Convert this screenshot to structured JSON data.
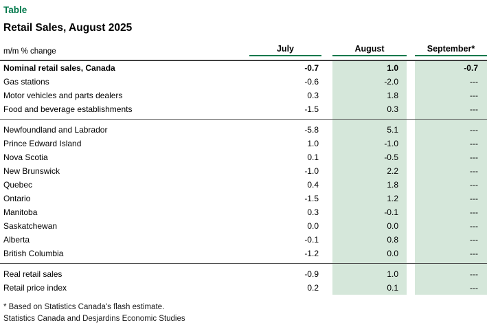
{
  "page": {
    "kicker": "Table",
    "title": "Retail Sales, August 2025"
  },
  "chart_data": {
    "type": "table",
    "title": "Retail Sales, August 2025",
    "unit_label": "m/m % change",
    "columns": [
      "July",
      "August",
      "September*"
    ],
    "shaded_columns": [
      "August",
      "September*"
    ],
    "sections": [
      {
        "rows": [
          {
            "label": "Nominal retail sales, Canada",
            "bold": true,
            "values": [
              "-0.7",
              "1.0",
              "-0.7"
            ]
          },
          {
            "label": "Gas stations",
            "bold": false,
            "values": [
              "-0.6",
              "-2.0",
              "---"
            ]
          },
          {
            "label": "Motor vehicles and parts dealers",
            "bold": false,
            "values": [
              "0.3",
              "1.8",
              "---"
            ]
          },
          {
            "label": "Food and beverage establishments",
            "bold": false,
            "values": [
              "-1.5",
              "0.3",
              "---"
            ]
          }
        ]
      },
      {
        "rows": [
          {
            "label": "Newfoundland and Labrador",
            "bold": false,
            "values": [
              "-5.8",
              "5.1",
              "---"
            ]
          },
          {
            "label": "Prince Edward Island",
            "bold": false,
            "values": [
              "1.0",
              "-1.0",
              "---"
            ]
          },
          {
            "label": "Nova Scotia",
            "bold": false,
            "values": [
              "0.1",
              "-0.5",
              "---"
            ]
          },
          {
            "label": "New Brunswick",
            "bold": false,
            "values": [
              "-1.0",
              "2.2",
              "---"
            ]
          },
          {
            "label": "Quebec",
            "bold": false,
            "values": [
              "0.4",
              "1.8",
              "---"
            ]
          },
          {
            "label": "Ontario",
            "bold": false,
            "values": [
              "-1.5",
              "1.2",
              "---"
            ]
          },
          {
            "label": "Manitoba",
            "bold": false,
            "values": [
              "0.3",
              "-0.1",
              "---"
            ]
          },
          {
            "label": "Saskatchewan",
            "bold": false,
            "values": [
              "0.0",
              "0.0",
              "---"
            ]
          },
          {
            "label": "Alberta",
            "bold": false,
            "values": [
              "-0.1",
              "0.8",
              "---"
            ]
          },
          {
            "label": "British Columbia",
            "bold": false,
            "values": [
              "-1.2",
              "0.0",
              "---"
            ]
          }
        ]
      },
      {
        "rows": [
          {
            "label": "Real retail sales",
            "bold": false,
            "values": [
              "-0.9",
              "1.0",
              "---"
            ]
          },
          {
            "label": "Retail price index",
            "bold": false,
            "values": [
              "0.2",
              "0.1",
              "---"
            ]
          }
        ]
      }
    ]
  },
  "footnotes": [
    "* Based on Statistics Canada's flash estimate.",
    "Statistics Canada and Desjardins Economic Studies"
  ],
  "colors": {
    "accent_green": "#00784b",
    "band_green": "#d5e7da",
    "header_rule": "#404040",
    "divider": "#4d4d4d",
    "text": "#000000"
  }
}
